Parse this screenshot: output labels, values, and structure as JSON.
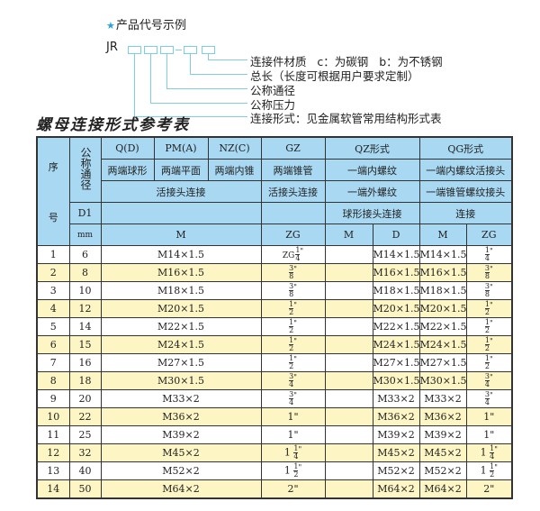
{
  "example": {
    "title": "产品代号示例",
    "code_prefix": "JR",
    "dash": "-",
    "labels": [
      "连接件材质   c：为碳钢   b：为不锈钢",
      "总长（长度可根据用户要求定制）",
      "公称通径",
      "公称压力",
      "连接形式：见金属软管常用结构形式表"
    ]
  },
  "title": "螺母连接形式参考表",
  "header": {
    "seq": "序\n\n号",
    "seq_top": "序",
    "seq_bottom": "号",
    "dn": "公称通径",
    "qd": "Q(D)",
    "pm": "PM(A)",
    "nz": "NZ(C)",
    "gz": "GZ",
    "qz": "QZ形式",
    "qg": "QG形式",
    "qd_desc": "两端球形",
    "pm_desc": "两端平面",
    "nz_desc": "两端内锥",
    "gz_desc": "两端锥管",
    "qz_desc": "一端内螺纹",
    "qg_desc": "一端内螺纹活接头",
    "union": "活接头连接",
    "gz_union": "活接头连接",
    "qz_desc2": "一端外螺纹",
    "qg_desc2": "一端锥管螺纹接头",
    "d1": "D1",
    "qz_desc3": "球形接头连接",
    "qg_desc3": "连接",
    "mm": "mm",
    "m": "M",
    "zg": "ZG",
    "qz_m": "M",
    "qz_d": "D",
    "qg_m": "M",
    "qg_zg": "ZG"
  },
  "rows": [
    {
      "seq": "1",
      "dn": "6",
      "m": "M14×1.5",
      "zg": {
        "pre": "ZG",
        "whole": "",
        "num": "1",
        "den": "4",
        "txt": ""
      },
      "qz_d": "M14×1.5",
      "qg_m": "M14×1.5"
    },
    {
      "seq": "2",
      "dn": "8",
      "m": "M16×1.5",
      "zg": {
        "pre": "",
        "whole": "",
        "num": "3",
        "den": "8",
        "txt": ""
      },
      "qz_d": "M16×1.5",
      "qg_m": "M16×1.5"
    },
    {
      "seq": "3",
      "dn": "10",
      "m": "M18×1.5",
      "zg": {
        "pre": "",
        "whole": "",
        "num": "3",
        "den": "8",
        "txt": ""
      },
      "qz_d": "M18×1.5",
      "qg_m": "M18×1.5"
    },
    {
      "seq": "4",
      "dn": "12",
      "m": "M20×1.5",
      "zg": {
        "pre": "",
        "whole": "",
        "num": "1",
        "den": "2",
        "txt": ""
      },
      "qz_d": "M20×1.5",
      "qg_m": "M20×1.5"
    },
    {
      "seq": "5",
      "dn": "14",
      "m": "M22×1.5",
      "zg": {
        "pre": "",
        "whole": "",
        "num": "1",
        "den": "2",
        "txt": ""
      },
      "qz_d": "M22×1.5",
      "qg_m": "M22×1.5"
    },
    {
      "seq": "6",
      "dn": "15",
      "m": "M24×1.5",
      "zg": {
        "pre": "",
        "whole": "",
        "num": "1",
        "den": "2",
        "txt": ""
      },
      "qz_d": "M24×1.5",
      "qg_m": "M24×1.5"
    },
    {
      "seq": "7",
      "dn": "16",
      "m": "M27×1.5",
      "zg": {
        "pre": "",
        "whole": "",
        "num": "1",
        "den": "2",
        "txt": ""
      },
      "qz_d": "M27×1.5",
      "qg_m": "M27×1.5"
    },
    {
      "seq": "8",
      "dn": "18",
      "m": "M30×1.5",
      "zg": {
        "pre": "",
        "whole": "",
        "num": "3",
        "den": "4",
        "txt": ""
      },
      "qz_d": "M30×1.5",
      "qg_m": "M30×1.5"
    },
    {
      "seq": "9",
      "dn": "20",
      "m": "M33×2",
      "zg": {
        "pre": "",
        "whole": "",
        "num": "3",
        "den": "4",
        "txt": ""
      },
      "qz_d": "M33×2",
      "qg_m": "M33×2"
    },
    {
      "seq": "10",
      "dn": "22",
      "m": "M36×2",
      "zg": {
        "pre": "",
        "whole": "",
        "num": "",
        "den": "",
        "txt": "1\""
      },
      "qz_d": "M36×2",
      "qg_m": "M36×2"
    },
    {
      "seq": "11",
      "dn": "25",
      "m": "M39×2",
      "zg": {
        "pre": "",
        "whole": "",
        "num": "",
        "den": "",
        "txt": "1\""
      },
      "qz_d": "M39×2",
      "qg_m": "M39×2"
    },
    {
      "seq": "12",
      "dn": "32",
      "m": "M45×2",
      "zg": {
        "pre": "",
        "whole": "1",
        "num": "1",
        "den": "4",
        "txt": ""
      },
      "qz_d": "M45×2",
      "qg_m": "M45×2"
    },
    {
      "seq": "13",
      "dn": "40",
      "m": "M52×2",
      "zg": {
        "pre": "",
        "whole": "1",
        "num": "1",
        "den": "2",
        "txt": ""
      },
      "qz_d": "M52×2",
      "qg_m": "M52×2"
    },
    {
      "seq": "14",
      "dn": "50",
      "m": "M64×2",
      "zg": {
        "pre": "",
        "whole": "",
        "num": "",
        "den": "",
        "txt": "2\""
      },
      "qz_d": "M64×2",
      "qg_m": "M64×2"
    }
  ],
  "colors": {
    "header_bg": "#a8d8f2",
    "alt_row_bg": "#fdf6c4",
    "leader_line": "#7ccfe2",
    "star": "#2aa4d8"
  }
}
